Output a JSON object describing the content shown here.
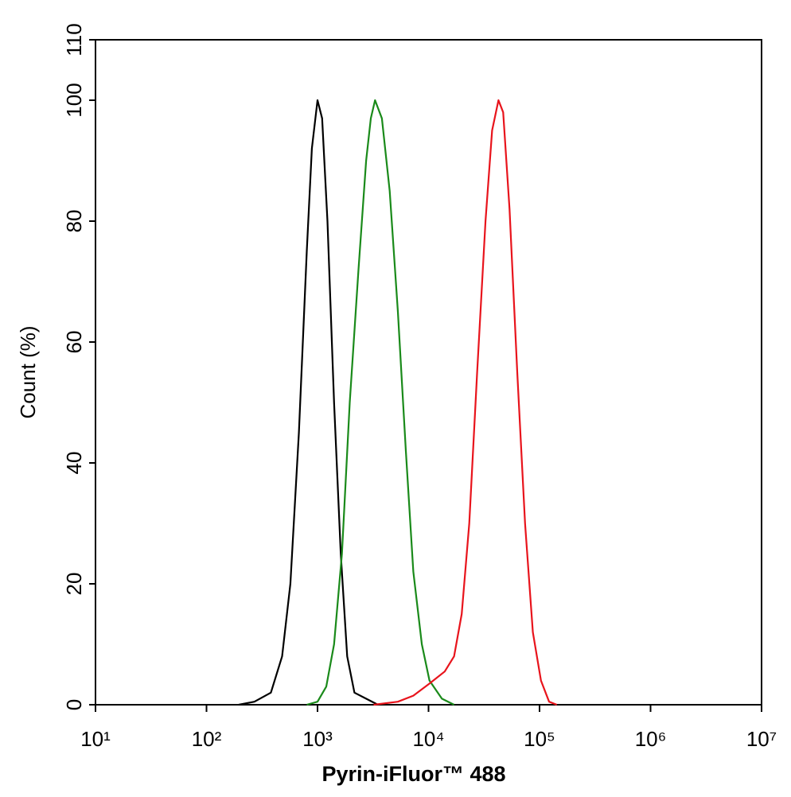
{
  "chart_data": {
    "type": "line",
    "xlabel": "Pyrin-iFluor™ 488",
    "ylabel": "Count  (%)",
    "xscale": "log",
    "xlim": [
      10,
      10000000
    ],
    "xticks": [
      {
        "value": 10,
        "label": "10¹"
      },
      {
        "value": 100,
        "label": "10²"
      },
      {
        "value": 1000,
        "label": "10³"
      },
      {
        "value": 10000,
        "label": "10⁴"
      },
      {
        "value": 100000,
        "label": "10⁵"
      },
      {
        "value": 1000000,
        "label": "10⁶"
      },
      {
        "value": 10000000,
        "label": "10⁷"
      }
    ],
    "ylim": [
      0,
      110
    ],
    "yticks": [
      0,
      20,
      40,
      60,
      80,
      100,
      110
    ],
    "series": [
      {
        "color": "#000000",
        "x": [
          195,
          270,
          380,
          480,
          570,
          680,
          800,
          890,
          1000,
          1100,
          1230,
          1410,
          1620,
          1850,
          2150,
          2740,
          3500
        ],
        "values": [
          0,
          0.5,
          2,
          8,
          20,
          45,
          75,
          92,
          100,
          97,
          80,
          50,
          25,
          8,
          2,
          1,
          0
        ]
      },
      {
        "color": "#1a8a1a",
        "x": [
          800,
          1000,
          1200,
          1410,
          1660,
          1950,
          2340,
          2740,
          3020,
          3300,
          3800,
          4470,
          5300,
          6250,
          7300,
          8700,
          10200,
          13200,
          17000
        ],
        "values": [
          0,
          0.5,
          3,
          10,
          25,
          50,
          72,
          90,
          97,
          100,
          97,
          85,
          65,
          42,
          22,
          10,
          4,
          1,
          0
        ]
      },
      {
        "color": "#e8141c",
        "x": [
          3200,
          5300,
          7300,
          10200,
          14000,
          17000,
          19900,
          23300,
          27400,
          32600,
          37400,
          42700,
          47000,
          53700,
          63000,
          74100,
          87000,
          103000,
          122000,
          143000
        ],
        "values": [
          0,
          0.5,
          1.5,
          3.5,
          5.5,
          8,
          15,
          30,
          55,
          80,
          95,
          100,
          98,
          82,
          55,
          30,
          12,
          4,
          0.5,
          0
        ]
      }
    ]
  }
}
